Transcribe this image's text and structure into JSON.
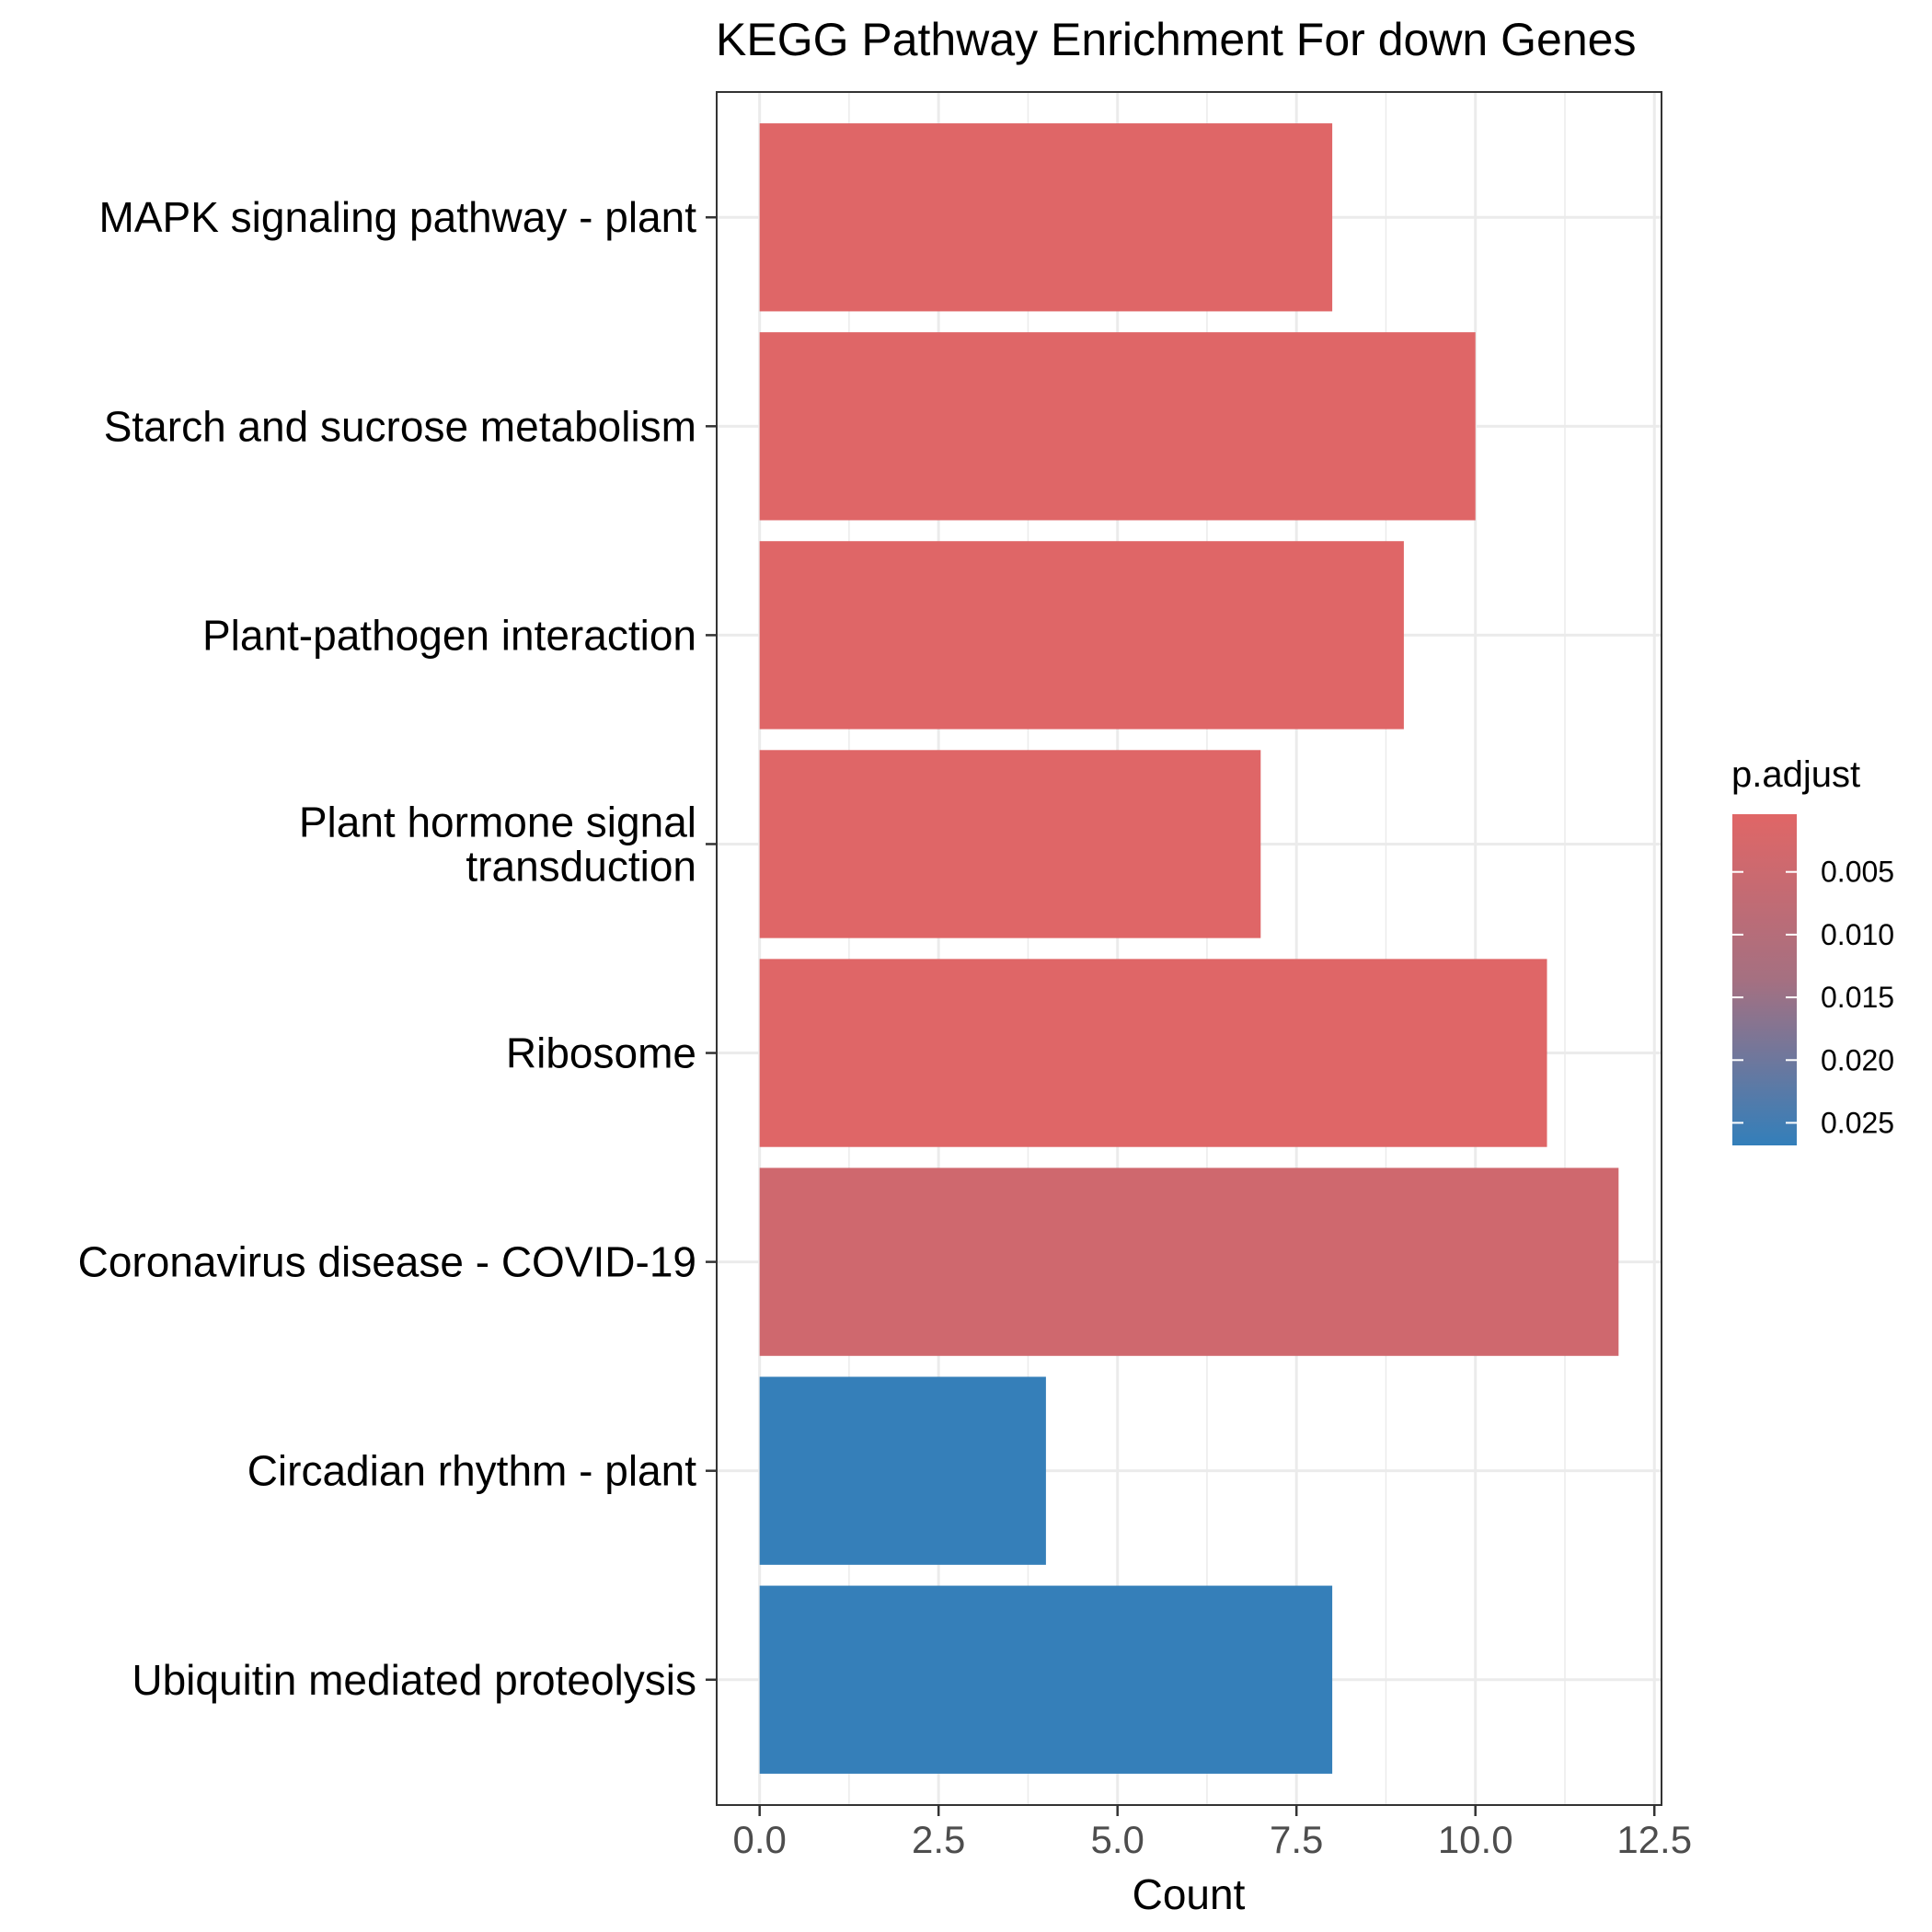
{
  "chart_data": {
    "type": "bar",
    "orientation": "horizontal",
    "title": "KEGG Pathway Enrichment For down Genes",
    "xlabel": "Count",
    "ylabel": "",
    "xlim": [
      -0.6,
      12.6
    ],
    "x_ticks": [
      "0.0",
      "2.5",
      "5.0",
      "7.5",
      "10.0",
      "12.5"
    ],
    "x_tick_values": [
      0,
      2.5,
      5,
      7.5,
      10,
      12.5
    ],
    "grid": true,
    "categories": [
      [
        "MAPK signaling pathway - plant"
      ],
      [
        "Starch and sucrose metabolism"
      ],
      [
        "Plant-pathogen interaction"
      ],
      [
        "Plant hormone signal",
        "transduction"
      ],
      [
        "Ribosome"
      ],
      [
        "Coronavirus disease - COVID-19"
      ],
      [
        "Circadian rhythm - plant"
      ],
      [
        "Ubiquitin mediated proteolysis"
      ]
    ],
    "values": [
      8,
      10,
      9,
      7,
      11,
      12,
      4,
      8
    ],
    "p_adjust": [
      0.0006,
      0.0006,
      0.0006,
      0.0006,
      0.0006,
      0.003,
      0.0265,
      0.0265
    ],
    "legend": {
      "title": "p.adjust",
      "position": "right",
      "range": [
        0.0004,
        0.0268
      ],
      "ticks": [
        "0.005",
        "0.010",
        "0.015",
        "0.020",
        "0.025"
      ],
      "tick_values": [
        0.005,
        0.01,
        0.015,
        0.02,
        0.025
      ],
      "color_low": "#e06666",
      "color_high": "#337fba"
    }
  }
}
